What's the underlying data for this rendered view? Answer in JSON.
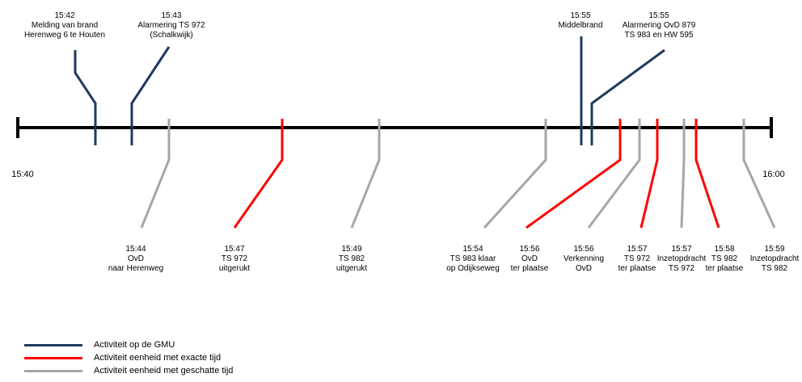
{
  "colors": {
    "gmu": "#1f3a5f",
    "exact": "#ff0000",
    "estimated": "#a6a6a6",
    "axis": "#000000"
  },
  "axis": {
    "start_label": "15:40",
    "end_label": "16:00"
  },
  "events": [
    {
      "id": "melding",
      "kind": "gmu",
      "time": "15:42",
      "lines": [
        "Melding van brand",
        "Herenweg 6 te Houten"
      ]
    },
    {
      "id": "alarmering-ts972",
      "kind": "gmu",
      "time": "15:43",
      "lines": [
        "Alarmering TS 972",
        "(Schalkwijk)"
      ]
    },
    {
      "id": "ovd-naar-herenweg",
      "kind": "estimated",
      "time": "15:44",
      "lines": [
        "OvD",
        "naar Herenweg"
      ]
    },
    {
      "id": "ts972-uitgerukt",
      "kind": "exact",
      "time": "15:47",
      "lines": [
        "TS 972",
        "uitgerukt"
      ]
    },
    {
      "id": "ts982-uitgerukt",
      "kind": "estimated",
      "time": "15:49",
      "lines": [
        "TS 982",
        "uitgerukt"
      ]
    },
    {
      "id": "ts983-klaar",
      "kind": "estimated",
      "time": "15:54",
      "lines": [
        "TS 983 klaar",
        "op Odijkseweg"
      ]
    },
    {
      "id": "middelbrand",
      "kind": "gmu",
      "time": "15:55",
      "lines": [
        "Middelbrand"
      ]
    },
    {
      "id": "alarmering-ovd879",
      "kind": "gmu",
      "time": "15:55",
      "lines": [
        "Alarmering OvD 879",
        "TS 983 en HW 595"
      ]
    },
    {
      "id": "ovd-ter-plaatse",
      "kind": "exact",
      "time": "15:56",
      "lines": [
        "OvD",
        "ter plaatse"
      ]
    },
    {
      "id": "verkenning-ovd",
      "kind": "estimated",
      "time": "15:56",
      "lines": [
        "Verkenning",
        "OvD"
      ]
    },
    {
      "id": "ts972-ter-plaatse",
      "kind": "exact",
      "time": "15:57",
      "lines": [
        "TS 972",
        "ter plaatse"
      ]
    },
    {
      "id": "inzetopdracht-ts972",
      "kind": "estimated",
      "time": "15:57",
      "lines": [
        "Inzetopdracht",
        "TS 972"
      ]
    },
    {
      "id": "ts982-ter-plaatse",
      "kind": "exact",
      "time": "15:58",
      "lines": [
        "TS 982",
        "ter plaatse"
      ]
    },
    {
      "id": "inzetopdracht-ts982",
      "kind": "estimated",
      "time": "15:59",
      "lines": [
        "Inzetopdracht",
        "TS 982"
      ]
    }
  ],
  "legend": [
    {
      "kind": "gmu",
      "label": "Activiteit op de GMU"
    },
    {
      "kind": "exact",
      "label": "Activiteit eenheid met exacte tijd"
    },
    {
      "kind": "estimated",
      "label": "Activiteit eenheid met geschatte tijd"
    }
  ]
}
